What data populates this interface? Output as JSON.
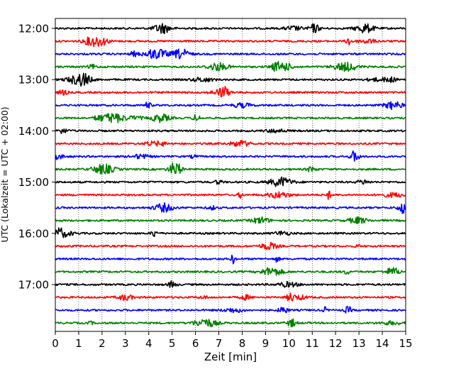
{
  "chart_data": {
    "type": "line",
    "title": "",
    "xlabel": "Zeit  [min]",
    "ylabel": "UTC (Lokalzeit = UTC + 02:00)",
    "xlim": [
      0,
      15
    ],
    "x_ticks": [
      0,
      1,
      2,
      3,
      4,
      5,
      6,
      7,
      8,
      9,
      10,
      11,
      12,
      13,
      14,
      15
    ],
    "x_tick_labels": [
      "0",
      "1",
      "2",
      "3",
      "4",
      "5",
      "6",
      "7",
      "8",
      "9",
      "10",
      "11",
      "12",
      "13",
      "14",
      "15"
    ],
    "y_tick_labels": [
      "12:00",
      "13:00",
      "14:00",
      "15:00",
      "16:00",
      "17:00"
    ],
    "y_tick_rows": [
      0,
      4,
      8,
      12,
      16,
      20
    ],
    "grid": "vertical dotted",
    "trace_interval_minutes": 15,
    "rows": 24,
    "colors": [
      "#000000",
      "#ff0000",
      "#0000ff",
      "#008000"
    ],
    "series": [
      {
        "start": "12:00",
        "color": "#000000"
      },
      {
        "start": "12:15",
        "color": "#ff0000"
      },
      {
        "start": "12:30",
        "color": "#0000ff"
      },
      {
        "start": "12:45",
        "color": "#008000"
      },
      {
        "start": "13:00",
        "color": "#000000"
      },
      {
        "start": "13:15",
        "color": "#ff0000"
      },
      {
        "start": "13:30",
        "color": "#0000ff"
      },
      {
        "start": "13:45",
        "color": "#008000"
      },
      {
        "start": "14:00",
        "color": "#000000"
      },
      {
        "start": "14:15",
        "color": "#ff0000"
      },
      {
        "start": "14:30",
        "color": "#0000ff"
      },
      {
        "start": "14:45",
        "color": "#008000"
      },
      {
        "start": "15:00",
        "color": "#000000"
      },
      {
        "start": "15:15",
        "color": "#ff0000"
      },
      {
        "start": "15:30",
        "color": "#0000ff"
      },
      {
        "start": "15:45",
        "color": "#008000"
      },
      {
        "start": "16:00",
        "color": "#000000"
      },
      {
        "start": "16:15",
        "color": "#ff0000"
      },
      {
        "start": "16:30",
        "color": "#0000ff"
      },
      {
        "start": "16:45",
        "color": "#008000"
      },
      {
        "start": "17:00",
        "color": "#000000"
      },
      {
        "start": "17:15",
        "color": "#ff0000"
      },
      {
        "start": "17:30",
        "color": "#0000ff"
      },
      {
        "start": "17:45",
        "color": "#008000"
      }
    ]
  }
}
